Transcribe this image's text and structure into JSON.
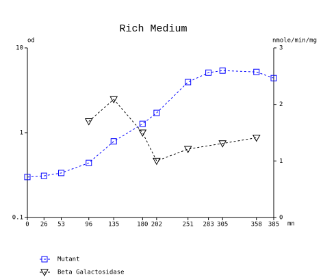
{
  "chart_data": {
    "type": "line",
    "title": "Rich Medium",
    "y_label": "od",
    "y2_label": "nmole/min/mg",
    "x_label": "mn",
    "xlim": [
      0,
      385
    ],
    "xticks": [
      0,
      26,
      53,
      96,
      135,
      180,
      202,
      251,
      283,
      305,
      358,
      385
    ],
    "ylim": [
      0.1,
      10
    ],
    "yticks": [
      0.1,
      1,
      10
    ],
    "ylog": true,
    "y2lim": [
      0,
      3
    ],
    "y2ticks": [
      0,
      1,
      2,
      3
    ],
    "series": [
      {
        "name": "Mutant",
        "color": "#0000ff",
        "marker": "square",
        "x": [
          0,
          26,
          53,
          96,
          135,
          180,
          202,
          251,
          283,
          305,
          358,
          385
        ],
        "values": [
          0.3,
          0.31,
          0.335,
          0.44,
          0.79,
          1.27,
          1.71,
          3.95,
          5.1,
          5.4,
          5.2,
          4.4
        ]
      },
      {
        "name": "Beta Galactosidase",
        "color": "#000000",
        "marker": "triangle-down",
        "axis": "y2",
        "x": [
          96,
          135,
          180,
          202,
          251,
          305,
          358
        ],
        "values": [
          1.7,
          2.09,
          1.5,
          1.0,
          1.21,
          1.31,
          1.41
        ]
      }
    ]
  }
}
